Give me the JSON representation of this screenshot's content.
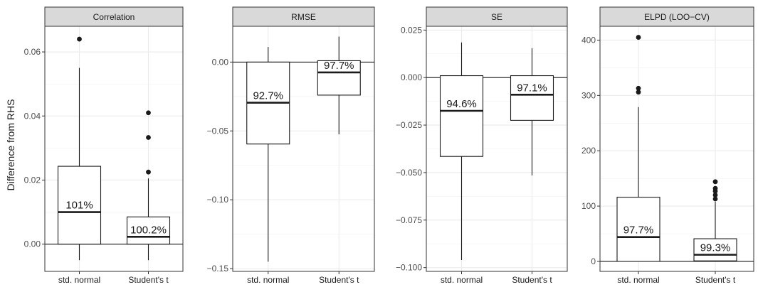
{
  "figure": {
    "ylabel": "Difference from RHS"
  },
  "chart_data": [
    {
      "type": "boxplot",
      "title": "Correlation",
      "ylim": [
        -0.0085,
        0.068
      ],
      "yticks": [
        0.0,
        0.02,
        0.04,
        0.06
      ],
      "ytick_labels": [
        "0.00",
        "0.02",
        "0.04",
        "0.06"
      ],
      "reference_line": 0,
      "grid": true,
      "categories": [
        "std. normal",
        "Student's t"
      ],
      "boxes": [
        {
          "category": "std. normal",
          "lower_whisker": -0.005,
          "q1": 0.0,
          "median": 0.01,
          "q3": 0.0243,
          "upper_whisker": 0.055,
          "outliers": [
            0.064
          ],
          "label": "101%"
        },
        {
          "category": "Student's t",
          "lower_whisker": -0.005,
          "q1": 0.0,
          "median": 0.0023,
          "q3": 0.0085,
          "upper_whisker": 0.0205,
          "outliers": [
            0.0225,
            0.0333,
            0.041
          ],
          "label": "100.2%"
        }
      ]
    },
    {
      "type": "boxplot",
      "title": "RMSE",
      "ylim": [
        -0.152,
        0.026
      ],
      "yticks": [
        0.0,
        -0.05,
        -0.1,
        -0.15
      ],
      "ytick_labels": [
        "0.00",
        "−0.05",
        "−0.10",
        "−0.15"
      ],
      "reference_line": 0,
      "grid": true,
      "categories": [
        "std. normal",
        "Student's t"
      ],
      "boxes": [
        {
          "category": "std. normal",
          "lower_whisker": -0.145,
          "q1": -0.0595,
          "median": -0.0295,
          "q3": 0.0,
          "upper_whisker": 0.011,
          "outliers": [],
          "label": "92.7%"
        },
        {
          "category": "Student's t",
          "lower_whisker": -0.0525,
          "q1": -0.024,
          "median": -0.0075,
          "q3": 0.001,
          "upper_whisker": 0.0185,
          "outliers": [],
          "label": "97.7%"
        }
      ]
    },
    {
      "type": "boxplot",
      "title": "SE",
      "ylim": [
        -0.102,
        0.027
      ],
      "yticks": [
        0.025,
        0.0,
        -0.025,
        -0.05,
        -0.075,
        -0.1
      ],
      "ytick_labels": [
        "0.025",
        "0.000",
        "−0.025",
        "−0.050",
        "−0.075",
        "−0.100"
      ],
      "reference_line": 0,
      "grid": true,
      "categories": [
        "std. normal",
        "Student's t"
      ],
      "boxes": [
        {
          "category": "std. normal",
          "lower_whisker": -0.096,
          "q1": -0.0415,
          "median": -0.0175,
          "q3": 0.001,
          "upper_whisker": 0.0185,
          "outliers": [],
          "label": "94.6%"
        },
        {
          "category": "Student's t",
          "lower_whisker": -0.0515,
          "q1": -0.0225,
          "median": -0.009,
          "q3": 0.001,
          "upper_whisker": 0.0155,
          "outliers": [],
          "label": "97.1%"
        }
      ]
    },
    {
      "type": "boxplot",
      "title": "ELPD (LOO−CV)",
      "ylim": [
        -18,
        425
      ],
      "yticks": [
        0,
        100,
        200,
        300,
        400
      ],
      "ytick_labels": [
        "0",
        "100",
        "200",
        "300",
        "400"
      ],
      "reference_line": 0,
      "grid": true,
      "categories": [
        "std. normal",
        "Student's t"
      ],
      "boxes": [
        {
          "category": "std. normal",
          "lower_whisker": 0,
          "q1": 0,
          "median": 44,
          "q3": 116,
          "upper_whisker": 279,
          "outliers": [
            306,
            313,
            405
          ],
          "label": "97.7%"
        },
        {
          "category": "Student's t",
          "lower_whisker": 0,
          "q1": 1,
          "median": 12,
          "q3": 41,
          "upper_whisker": 108,
          "outliers": [
            113,
            120,
            127,
            132,
            144
          ],
          "label": "99.3%"
        }
      ]
    }
  ]
}
